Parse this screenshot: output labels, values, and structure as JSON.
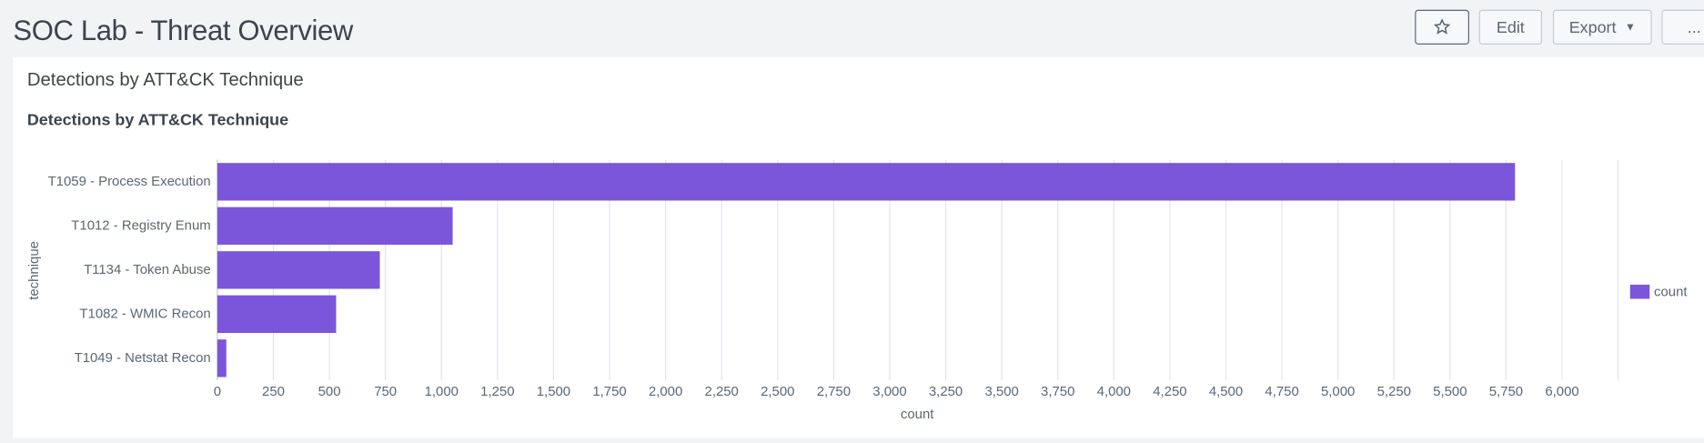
{
  "header": {
    "title": "SOC Lab - Threat Overview",
    "buttons": [
      "Edit",
      "Export",
      "..."
    ]
  },
  "chart_data": {
    "type": "bar",
    "orientation": "horizontal",
    "panel_title": "Detections by ATT&CK Technique",
    "title": "Detections by ATT&CK Technique",
    "x_label": "count",
    "y_label": "technique",
    "categories": [
      "T1059 - Process Execution",
      "T1012 - Registry Enum",
      "T1134 - Token Abuse",
      "T1082 - WMIC Recon",
      "T1049 - Netstat Recon"
    ],
    "series": [
      {
        "name": "count",
        "color": "#7b56db",
        "values": [
          5790,
          1050,
          725,
          530,
          40
        ]
      }
    ],
    "xlim": [
      0,
      6250
    ],
    "xticks": [
      0,
      250,
      500,
      750,
      {
        "value": 1000,
        "label": "1,000"
      },
      {
        "value": 1250,
        "label": "1,250"
      },
      {
        "value": 1500,
        "label": "1,500"
      },
      {
        "value": 1750,
        "label": "1,750"
      },
      {
        "value": 2000,
        "label": "2,000"
      },
      {
        "value": 2250,
        "label": "2,250"
      },
      {
        "value": 2500,
        "label": "2,500"
      },
      {
        "value": 2750,
        "label": "2,750"
      },
      {
        "value": 3000,
        "label": "3,000"
      },
      {
        "value": 3250,
        "label": "3,250"
      },
      {
        "value": 3500,
        "label": "3,500"
      },
      {
        "value": 3750,
        "label": "3,750"
      },
      {
        "value": 4000,
        "label": "4,000"
      },
      {
        "value": 4250,
        "label": "4,250"
      },
      {
        "value": 4500,
        "label": "4,500"
      },
      {
        "value": 4750,
        "label": "4,750"
      },
      {
        "value": 5000,
        "label": "5,000"
      },
      {
        "value": 5250,
        "label": "5,250"
      },
      {
        "value": 5500,
        "label": "5,500"
      },
      {
        "value": 5750,
        "label": "5,750"
      },
      {
        "value": 6000,
        "label": "6,000"
      }
    ],
    "grid": true,
    "legend": "right"
  }
}
